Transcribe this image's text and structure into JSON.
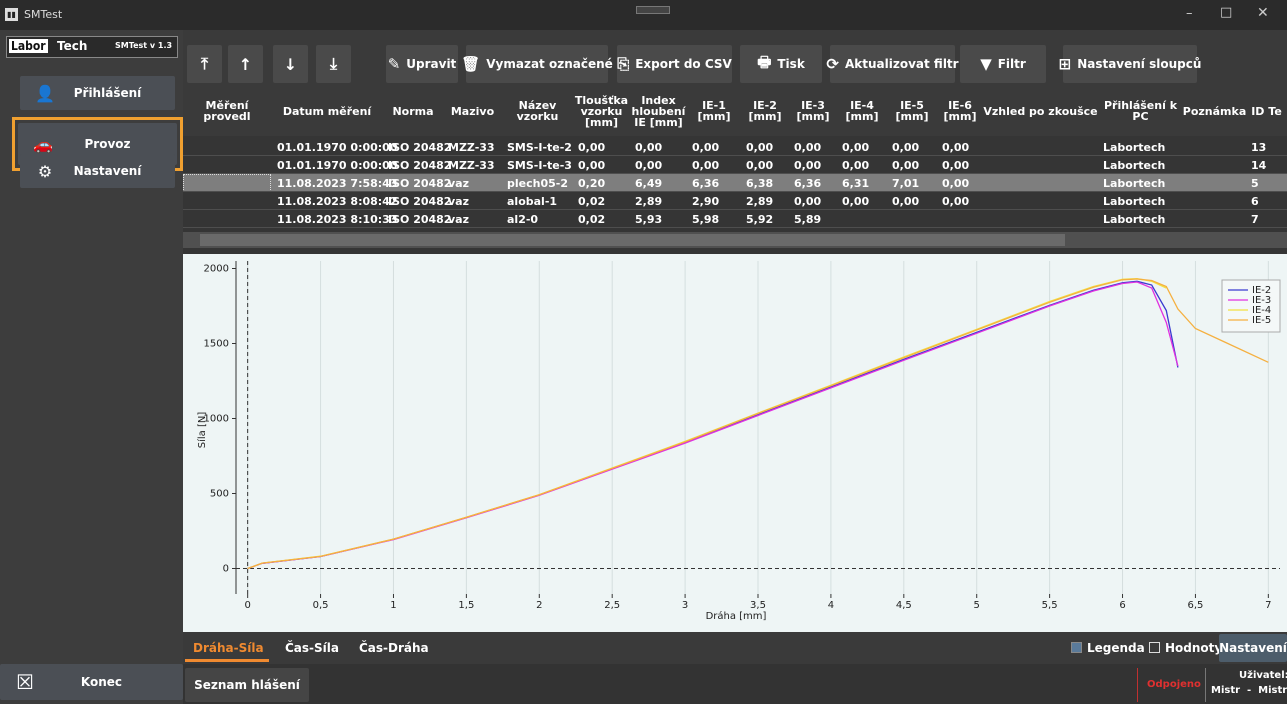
{
  "window": {
    "title": "SMTest"
  },
  "sidebar": {
    "logo_left": "Labor",
    "logo_right": "Tech",
    "version": "SMTest v 1.3",
    "menu": [
      "Přihlášení",
      "Provoz",
      "Nastavení"
    ],
    "exit": "Konec"
  },
  "toolbar": [
    "Upravit",
    "Vymazat označené",
    "Export do CSV",
    "Tisk",
    "Aktualizovat filtr",
    "Filtr",
    "Nastavení sloupců"
  ],
  "table": {
    "columns": [
      "Měření provedl",
      "Datum měření",
      "Norma",
      "Mazivo",
      "Název\nvzorku",
      "Tloušťka\nvzorku\n[mm]",
      "Index\nhloubení\nIE [mm]",
      "IE-1\n[mm]",
      "IE-2\n[mm]",
      "IE-3\n[mm]",
      "IE-4\n[mm]",
      "IE-5\n[mm]",
      "IE-6\n[mm]",
      "Vzhled po zkoušce",
      "Přihlášení k PC",
      "Poznámka",
      "ID Te"
    ],
    "rows": [
      [
        null,
        "01.01.1970 0:00:00",
        "ISO 20482",
        "MZZ-33",
        "SMS-I-te-2",
        "0,00",
        "0,00",
        "0,00",
        "0,00",
        "0,00",
        "0,00",
        "0,00",
        "0,00",
        null,
        "Labortech",
        null,
        "13"
      ],
      [
        null,
        "01.01.1970 0:00:00",
        "ISO 20482",
        "MZZ-33",
        "SMS-I-te-3",
        "0,00",
        "0,00",
        "0,00",
        "0,00",
        "0,00",
        "0,00",
        "0,00",
        "0,00",
        null,
        "Labortech",
        null,
        "14"
      ],
      [
        null,
        "11.08.2023 7:58:43",
        "ISO 20482",
        "vaz",
        "plech05-2",
        "0,20",
        "6,49",
        "6,36",
        "6,38",
        "6,36",
        "6,31",
        "7,01",
        "0,00",
        null,
        "Labortech",
        null,
        "5"
      ],
      [
        null,
        "11.08.2023 8:08:42",
        "ISO 20482",
        "vaz",
        "alobal-1",
        "0,02",
        "2,89",
        "2,90",
        "2,89",
        "0,00",
        "0,00",
        "0,00",
        "0,00",
        null,
        "Labortech",
        null,
        "6"
      ],
      [
        null,
        "11.08.2023 8:10:33",
        "ISO 20482",
        "vaz",
        "al2-0",
        "0,02",
        "5,93",
        "5,98",
        "5,92",
        "5,89",
        null,
        null,
        null,
        null,
        "Labortech",
        null,
        "7"
      ]
    ]
  },
  "chart_data": {
    "type": "line",
    "x_label": "Dráha [mm]",
    "y_label": "Síla [N]",
    "x": [
      0,
      0.1,
      0.5,
      1,
      1.5,
      2,
      2.5,
      3,
      3.5,
      4,
      4.5,
      5,
      5.5,
      5.8,
      6,
      6.1,
      6.2,
      6.3,
      6.38,
      6.5,
      6.7,
      7
    ],
    "series": [
      {
        "name": "IE-2",
        "color": "#3a3ad0",
        "values": [
          0,
          35,
          80,
          195,
          340,
          490,
          665,
          840,
          1025,
          1210,
          1395,
          1575,
          1755,
          1855,
          1905,
          1915,
          1890,
          1720,
          1340,
          null,
          null,
          null
        ]
      },
      {
        "name": "IE-3",
        "color": "#e030e0",
        "values": [
          0,
          35,
          80,
          193,
          338,
          488,
          662,
          836,
          1020,
          1204,
          1388,
          1568,
          1750,
          1850,
          1900,
          1910,
          1870,
          1640,
          1350,
          null,
          null,
          null
        ]
      },
      {
        "name": "IE-4",
        "color": "#f2e040",
        "values": [
          0,
          36,
          82,
          196,
          342,
          493,
          670,
          848,
          1036,
          1222,
          1410,
          1595,
          1780,
          1880,
          1928,
          1932,
          1915,
          1870,
          null,
          null,
          null,
          null
        ]
      },
      {
        "name": "IE-5",
        "color": "#f5b040",
        "values": [
          0,
          36,
          81,
          196,
          342,
          492,
          668,
          845,
          1033,
          1218,
          1405,
          1590,
          1775,
          1875,
          1925,
          1930,
          1920,
          1880,
          1730,
          1600,
          1510,
          1375
        ]
      }
    ],
    "xlim": [
      -0.08,
      7.08
    ],
    "ylim": [
      -170,
      2050
    ],
    "xticks": [
      0,
      {
        "value": 0.5,
        "label": "0,5"
      },
      1,
      {
        "value": 1.5,
        "label": "1,5"
      },
      2,
      {
        "value": 2.5,
        "label": "2,5"
      },
      3,
      {
        "value": 3.5,
        "label": "3,5"
      },
      4,
      {
        "value": 4.5,
        "label": "4,5"
      },
      5,
      {
        "value": 5.5,
        "label": "5,5"
      },
      6,
      {
        "value": 6.5,
        "label": "6,5"
      },
      7
    ],
    "yticks": [
      0,
      500,
      1000,
      1500,
      2000
    ],
    "grid": true,
    "legend": "upper right"
  },
  "tabs": [
    "Dráha-Síla",
    "Čas-Síla",
    "Čas-Dráha"
  ],
  "options": {
    "legend": "Legenda",
    "values": "Hodnoty",
    "settings": "Nastavení"
  },
  "status": {
    "log": "Seznam hlášení",
    "connection": "Odpojeno",
    "user_label": "Uživatel:",
    "user": "Mistr  -  Mistr"
  }
}
